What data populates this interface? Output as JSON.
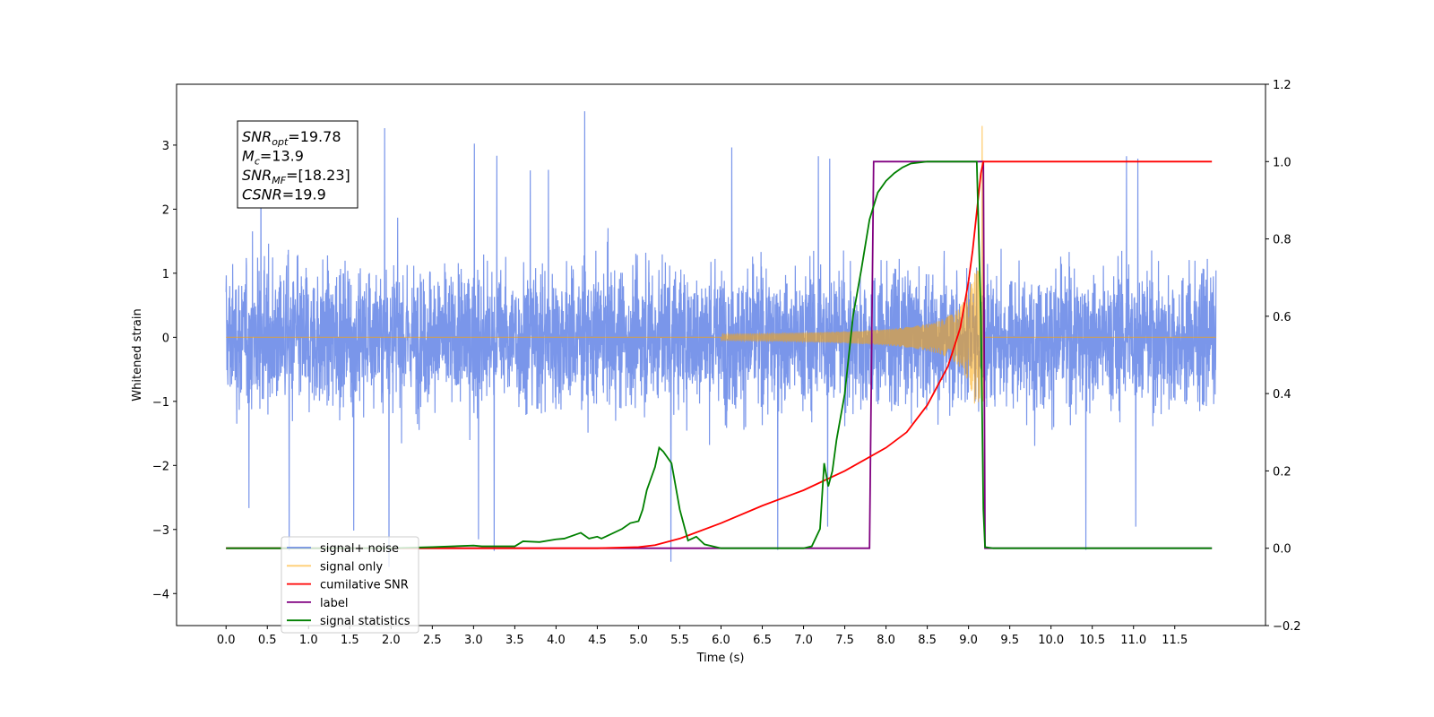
{
  "chart_data": {
    "type": "line",
    "xlabel": "Time (s)",
    "ylabel": "Whitened strain",
    "xlim": [
      -0.6,
      12.6
    ],
    "ylim": [
      -4.5,
      3.95
    ],
    "y2lim": [
      -0.2,
      1.2
    ],
    "x_ticks": [
      0.0,
      0.5,
      1.0,
      1.5,
      2.0,
      2.5,
      3.0,
      3.5,
      4.0,
      4.5,
      5.0,
      5.5,
      6.0,
      6.5,
      7.0,
      7.5,
      8.0,
      8.5,
      9.0,
      9.5,
      10.0,
      10.5,
      11.0,
      11.5
    ],
    "x_tick_labels": [
      "0.0",
      "0.5",
      "1.0",
      "1.5",
      "2.0",
      "2.5",
      "3.0",
      "3.5",
      "4.0",
      "4.5",
      "5.0",
      "5.5",
      "6.0",
      "6.5",
      "7.0",
      "7.5",
      "8.0",
      "8.5",
      "9.0",
      "9.5",
      "10.0",
      "10.5",
      "11.0",
      "11.5"
    ],
    "y_ticks": [
      -4,
      -3,
      -2,
      -1,
      0,
      1,
      2,
      3
    ],
    "y_tick_labels": [
      "−4",
      "−3",
      "−2",
      "−1",
      "0",
      "1",
      "2",
      "3"
    ],
    "y2_ticks": [
      -0.2,
      0.0,
      0.2,
      0.4,
      0.6,
      0.8,
      1.0,
      1.2
    ],
    "y2_tick_labels": [
      "−0.2",
      "0.0",
      "0.2",
      "0.4",
      "0.6",
      "0.8",
      "1.0",
      "1.2"
    ],
    "grid": false,
    "legend_position": "lower-left",
    "info_box": {
      "lines": [
        {
          "base": "SNR",
          "sub": "opt",
          "value": "=19.78"
        },
        {
          "base": "M",
          "sub": "c",
          "value": "=13.9"
        },
        {
          "base": "SNR",
          "sub": "MF",
          "value": "=[18.23]"
        },
        {
          "base": "CSNR",
          "sub": "",
          "value": "=19.9"
        }
      ]
    },
    "series": [
      {
        "name": "signal+ noise",
        "axis": "left",
        "color": "#4169e1",
        "description": "noise band roughly ±1.5 with spikes up to about ±3.5, t from 0 to 12",
        "x_range": [
          0.0,
          12.0
        ],
        "envelope": [
          -1.5,
          1.5
        ],
        "max_value": 3.6,
        "min_value": -4.1
      },
      {
        "name": "signal only",
        "axis": "left",
        "color": "#ffa500",
        "description": "chirp, amplitude rising from 0 near t=6 to about 1.0 at t=9.15, with a short spike to about 3.3",
        "chirp_start": 6.0,
        "merger_time": 9.15,
        "peak_amplitude": 1.0,
        "spike_value": 3.3
      },
      {
        "name": "cumilative SNR",
        "axis": "right",
        "color": "#ff0000",
        "x": [
          0.0,
          4.5,
          5.0,
          5.2,
          5.5,
          6.0,
          6.5,
          7.0,
          7.5,
          8.0,
          8.25,
          8.5,
          8.75,
          8.9,
          9.0,
          9.05,
          9.1,
          9.15,
          9.18,
          9.3,
          10.0,
          11.0,
          11.95
        ],
        "values": [
          0.0,
          0.0,
          0.003,
          0.008,
          0.025,
          0.065,
          0.11,
          0.15,
          0.2,
          0.26,
          0.3,
          0.37,
          0.47,
          0.57,
          0.69,
          0.77,
          0.87,
          0.97,
          1.0,
          1.0,
          1.0,
          1.0,
          1.0
        ]
      },
      {
        "name": "label",
        "axis": "right",
        "color": "#800080",
        "x": [
          0.0,
          7.8,
          7.85,
          9.18,
          9.2,
          11.95
        ],
        "values": [
          0.0,
          0.0,
          1.0,
          1.0,
          0.0,
          0.0
        ]
      },
      {
        "name": "signal statistics",
        "axis": "right",
        "color": "#008000",
        "x": [
          0.0,
          2.0,
          2.5,
          3.0,
          3.1,
          3.5,
          3.6,
          3.8,
          4.0,
          4.1,
          4.3,
          4.4,
          4.5,
          4.55,
          4.6,
          4.8,
          4.9,
          5.0,
          5.05,
          5.1,
          5.2,
          5.25,
          5.3,
          5.4,
          5.5,
          5.6,
          5.7,
          5.8,
          6.0,
          6.5,
          7.0,
          7.1,
          7.2,
          7.25,
          7.3,
          7.35,
          7.4,
          7.5,
          7.6,
          7.7,
          7.8,
          7.9,
          8.0,
          8.1,
          8.2,
          8.3,
          8.5,
          9.0,
          9.1,
          9.15,
          9.18,
          9.2,
          9.3,
          11.95
        ],
        "values": [
          0.0,
          0.0,
          0.003,
          0.007,
          0.005,
          0.005,
          0.018,
          0.016,
          0.023,
          0.025,
          0.04,
          0.025,
          0.03,
          0.025,
          0.03,
          0.05,
          0.065,
          0.07,
          0.1,
          0.15,
          0.21,
          0.26,
          0.25,
          0.22,
          0.1,
          0.02,
          0.03,
          0.01,
          0.0,
          0.0,
          0.0,
          0.005,
          0.05,
          0.22,
          0.16,
          0.2,
          0.28,
          0.4,
          0.6,
          0.72,
          0.85,
          0.92,
          0.95,
          0.97,
          0.985,
          0.995,
          1.0,
          1.0,
          1.0,
          0.6,
          0.1,
          0.003,
          0.0,
          0.0
        ]
      }
    ]
  }
}
